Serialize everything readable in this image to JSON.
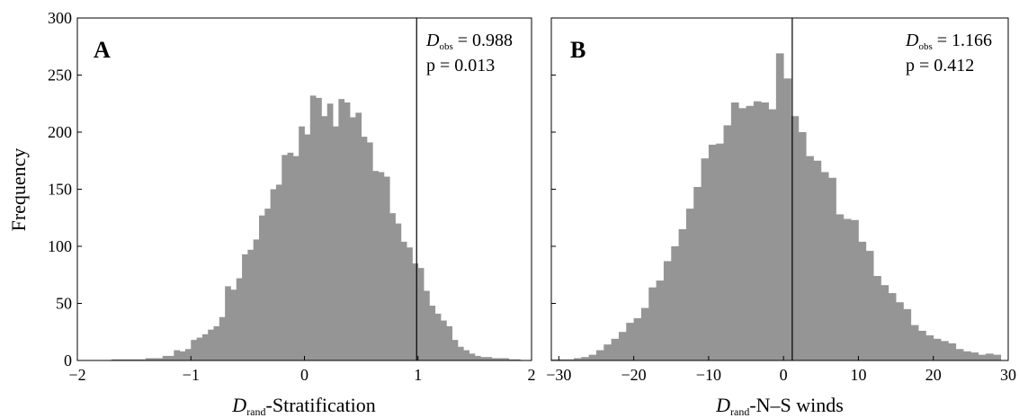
{
  "figure": {
    "ylabel": "Frequency"
  },
  "chart_data": [
    {
      "type": "bar",
      "panel_label": "A",
      "xlabel_main": "D",
      "xlabel_sub": "rand",
      "xlabel_rest": "-Stratification",
      "ylabel": "Frequency",
      "xlim": [
        -2,
        2
      ],
      "ylim": [
        0,
        300
      ],
      "x_ticks": [
        "−2",
        "−1",
        "0",
        "1",
        "2"
      ],
      "x_tick_values": [
        -2,
        -1,
        0,
        1,
        2
      ],
      "y_ticks": [
        "0",
        "50",
        "100",
        "150",
        "200",
        "250",
        "300"
      ],
      "y_tick_values": [
        0,
        50,
        100,
        150,
        200,
        250,
        300
      ],
      "bin_start": -2,
      "bin_width": 0.05,
      "values": [
        0,
        0,
        0,
        0,
        0,
        0,
        1,
        1,
        1,
        1,
        1,
        1,
        2,
        2,
        2,
        4,
        4,
        9,
        8,
        10,
        18,
        20,
        23,
        27,
        30,
        38,
        65,
        62,
        72,
        93,
        97,
        106,
        127,
        133,
        150,
        154,
        180,
        182,
        179,
        205,
        198,
        232,
        230,
        214,
        225,
        205,
        229,
        226,
        213,
        217,
        196,
        191,
        166,
        165,
        161,
        129,
        120,
        104,
        99,
        85,
        81,
        61,
        48,
        41,
        35,
        30,
        18,
        12,
        9,
        6,
        4,
        3,
        3,
        2,
        2,
        2,
        1,
        1,
        0,
        0
      ],
      "observed_value": 0.988,
      "annotation_main": "D",
      "annotation_sub": "obs",
      "annotation_value": " = 0.988",
      "annotation_p": "p = 0.013",
      "bar_color": "#959595"
    },
    {
      "type": "bar",
      "panel_label": "B",
      "xlabel_main": "D",
      "xlabel_sub": "rand",
      "xlabel_rest": "-N–S winds",
      "xlim": [
        -31,
        30
      ],
      "ylim": [
        0,
        300
      ],
      "x_ticks": [
        "−30",
        "−20",
        "−10",
        "0",
        "10",
        "20",
        "30"
      ],
      "x_tick_values": [
        -30,
        -20,
        -10,
        0,
        10,
        20,
        30
      ],
      "y_tick_values": [
        0,
        50,
        100,
        150,
        200,
        250,
        300
      ],
      "bin_start": -31,
      "bin_width": 1,
      "values": [
        1,
        1,
        1,
        2,
        3,
        5,
        9,
        14,
        19,
        25,
        33,
        37,
        46,
        64,
        70,
        87,
        100,
        115,
        133,
        152,
        177,
        189,
        190,
        206,
        226,
        221,
        223,
        227,
        226,
        220,
        269,
        247,
        214,
        200,
        179,
        175,
        165,
        160,
        128,
        124,
        123,
        104,
        96,
        74,
        66,
        59,
        51,
        45,
        31,
        26,
        22,
        19,
        17,
        15,
        10,
        8,
        7,
        5,
        6,
        5
      ],
      "observed_value": 1.166,
      "annotation_main": "D",
      "annotation_sub": "obs",
      "annotation_value": " = 1.166",
      "annotation_p": "p = 0.412",
      "bar_color": "#959595"
    }
  ]
}
